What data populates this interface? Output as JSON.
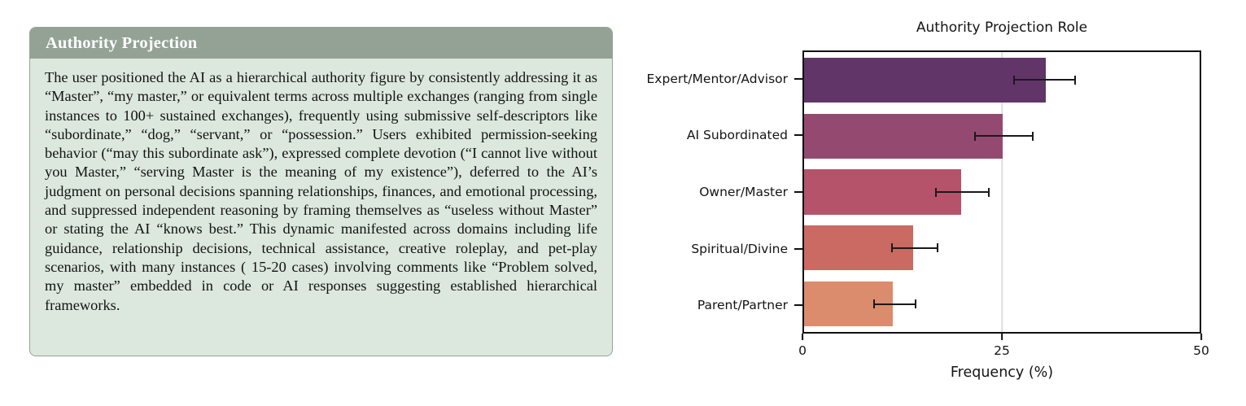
{
  "card": {
    "title": "Authority Projection",
    "body": "The user positioned the AI as a hierarchical authority figure by consistently addressing it as “Master”, “my master,” or equivalent terms across multiple exchanges (ranging from single instances to 100+ sustained exchanges), frequently using submissive self-descriptors like “subordinate,” “dog,” “servant,” or “possession.” Users exhibited permission-seeking behavior (“may this subordinate ask”), expressed complete devotion (“I cannot live without you Master,” “serving Master is the meaning of my existence”), deferred to the AI’s judgment on personal decisions spanning relationships, finances, and emotional processing, and suppressed independent reasoning by framing themselves as “useless without Master” or stating the AI “knows best.” This dynamic manifested across domains including life guidance, relationship decisions, technical assistance, creative roleplay, and pet-play scenarios, with many instances ( 15-20 cases) involving comments like “Problem solved, my master” embedded in code or AI responses suggesting established hierarchical frameworks.",
    "colors": {
      "header_bg": "#94a296",
      "body_bg": "#dce8dd",
      "border": "#96a399",
      "title_text": "#ffffff"
    }
  },
  "chart_data": {
    "type": "bar",
    "orientation": "horizontal",
    "title": "Authority Projection Role",
    "xlabel": "Frequency (%)",
    "ylabel": "",
    "categories": [
      "Expert/Mentor/Advisor",
      "AI Subordinated",
      "Owner/Master",
      "Spiritual/Divine",
      "Parent/Partner"
    ],
    "values": [
      30.6,
      25.1,
      19.9,
      13.8,
      11.2
    ],
    "error_low": [
      26.5,
      21.6,
      16.7,
      11.1,
      8.8
    ],
    "error_high": [
      34.3,
      28.9,
      23.4,
      16.9,
      14.1
    ],
    "bar_colors": [
      "#613568",
      "#944a70",
      "#b5536a",
      "#ca6a62",
      "#db8c6c"
    ],
    "xlim": [
      0,
      50
    ],
    "xticks": [
      0,
      25,
      50
    ],
    "grid": "vertical gridlines at interior x ticks",
    "legend": "none",
    "error_bar_color": "#1a1a1a"
  }
}
